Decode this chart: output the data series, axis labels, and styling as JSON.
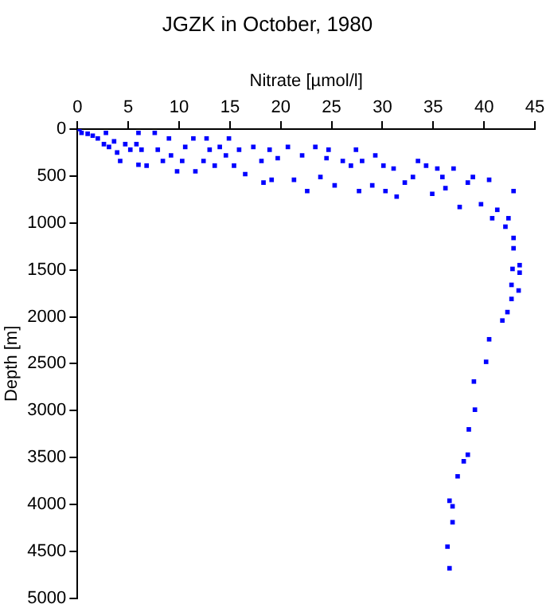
{
  "chart_data": {
    "type": "scatter",
    "title": "JGZK in October, 1980",
    "xlabel": "Nitrate [µmol/l]",
    "ylabel": "Depth [m]",
    "xlim": [
      0,
      45
    ],
    "xticks": [
      0,
      5,
      10,
      15,
      20,
      25,
      30,
      35,
      40,
      45
    ],
    "ylim": [
      5000,
      0
    ],
    "yticks": [
      0,
      500,
      1000,
      1500,
      2000,
      2500,
      3000,
      3500,
      4000,
      4500,
      5000
    ],
    "grid": false,
    "legend": false,
    "marker": "square",
    "series": [
      {
        "color": "#0000ff",
        "x": [
          0.2,
          0.4,
          1.0,
          1.5,
          2.0,
          2.8,
          2.6,
          3.1,
          3.6,
          3.9,
          4.2,
          4.7,
          5.2,
          5.8,
          6.0,
          6.3,
          6.0,
          6.8,
          7.6,
          7.9,
          8.4,
          9.0,
          9.2,
          9.8,
          10.3,
          10.6,
          11.4,
          11.6,
          12.4,
          12.7,
          13.0,
          13.5,
          14.0,
          14.6,
          14.9,
          15.4,
          15.9,
          16.5,
          17.3,
          18.1,
          18.3,
          18.9,
          19.1,
          19.7,
          20.7,
          21.3,
          22.1,
          22.6,
          23.4,
          23.9,
          24.5,
          25.3,
          24.7,
          26.1,
          26.9,
          27.4,
          27.7,
          28.0,
          29.3,
          29.0,
          30.1,
          30.3,
          31.1,
          31.4,
          32.2,
          33.0,
          33.5,
          34.3,
          34.9,
          35.4,
          35.9,
          36.2,
          37.0,
          37.6,
          38.4,
          38.9,
          39.7,
          40.5,
          40.8,
          41.3,
          42.1,
          42.9,
          42.4,
          42.9,
          42.9,
          43.5,
          42.8,
          43.5,
          42.7,
          43.4,
          42.7,
          42.3,
          41.8,
          40.5,
          40.2,
          39.0,
          39.1,
          38.5,
          38.4,
          38.0,
          37.4,
          36.6,
          36.9,
          36.9,
          36.4,
          36.6
        ],
        "values": [
          0,
          40,
          50,
          70,
          100,
          40,
          160,
          190,
          130,
          250,
          340,
          160,
          220,
          160,
          40,
          220,
          380,
          390,
          40,
          220,
          340,
          100,
          280,
          450,
          340,
          190,
          100,
          450,
          340,
          100,
          220,
          390,
          190,
          280,
          100,
          390,
          220,
          480,
          190,
          340,
          570,
          220,
          540,
          310,
          190,
          540,
          280,
          660,
          190,
          510,
          310,
          600,
          220,
          340,
          390,
          220,
          660,
          340,
          280,
          600,
          390,
          660,
          420,
          720,
          570,
          510,
          340,
          390,
          690,
          420,
          510,
          630,
          420,
          830,
          570,
          510,
          800,
          540,
          950,
          860,
          1040,
          660,
          950,
          1160,
          1270,
          1450,
          1490,
          1530,
          1660,
          1720,
          1810,
          1950,
          2040,
          2240,
          2480,
          2690,
          2990,
          3200,
          3470,
          3540,
          3700,
          3960,
          4020,
          4190,
          4450,
          4680
        ]
      }
    ]
  }
}
